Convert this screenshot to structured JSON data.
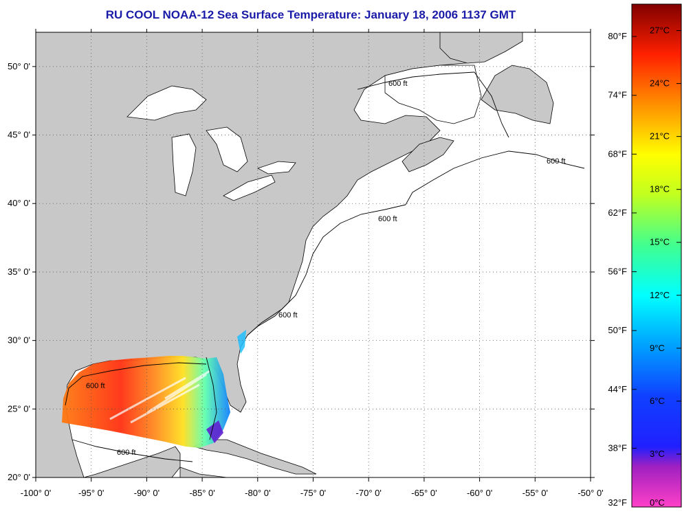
{
  "title": "RU COOL  NOAA-12  Sea Surface Temperature:  January 18, 2006 1137 GMT",
  "map": {
    "lon_labels": [
      "-100° 0'",
      "-95° 0'",
      "-90° 0'",
      "-85° 0'",
      "-80° 0'",
      "-75° 0'",
      "-70° 0'",
      "-65° 0'",
      "-60° 0'",
      "-55° 0'",
      "-50° 0'"
    ],
    "lat_labels": [
      "20° 0'",
      "25° 0'",
      "30° 0'",
      "35° 0'",
      "40° 0'",
      "45° 0'",
      "50° 0'"
    ],
    "lon_range": [
      -100,
      -50
    ],
    "lat_range": [
      20,
      52.5
    ],
    "grid": "dotted",
    "land_color": "#c8c8c8",
    "ocean_color": "#ffffff",
    "isobath_label": "600 ft",
    "region": "Gulf of Mexico and US East Coast"
  },
  "colorbar": {
    "fahrenheit_labels": [
      "80°F",
      "74°F",
      "68°F",
      "62°F",
      "56°F",
      "50°F",
      "44°F",
      "38°F",
      "32°F"
    ],
    "celsius_labels": [
      "27°C",
      "24°C",
      "21°C",
      "18°C",
      "15°C",
      "12°C",
      "9°C",
      "6°C",
      "3°C",
      "0°C"
    ],
    "range_c": [
      0,
      28.5
    ],
    "colors": [
      "#ff40c8",
      "#8020c0",
      "#1020ff",
      "#00a0ff",
      "#00ffff",
      "#40ff80",
      "#c0ff20",
      "#ffff00",
      "#ffa000",
      "#ff4000",
      "#e00000",
      "#800000"
    ]
  }
}
